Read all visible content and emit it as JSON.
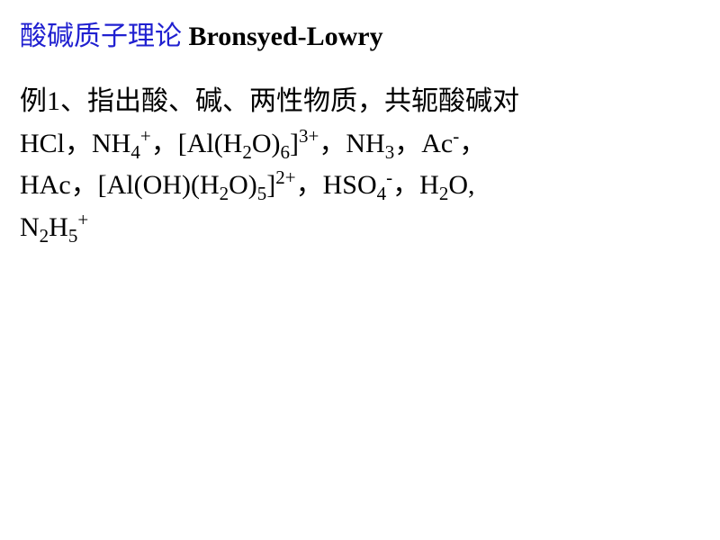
{
  "title": {
    "cn_text": "酸碱质子理论",
    "cn_color": "#2020d0",
    "en_text": "Bronsyed-Lowry",
    "en_color": "#000000",
    "fontsize": 30,
    "gap": "    "
  },
  "body": {
    "fontsize": 30,
    "color": "#000000",
    "line1_prefix": "例1、指出酸、碱、两性物质，共轭酸碱对",
    "items": {
      "HCl": "HCl",
      "NH4p": {
        "base": "NH",
        "sub1": "4",
        "sup1": "+"
      },
      "AlH2O6": {
        "open": "[Al(H",
        "s1": "2",
        "mid1": "O)",
        "s2": "6",
        "close": "]",
        "sup": "3+"
      },
      "NH3": {
        "base": "NH",
        "sub1": "3"
      },
      "Acm": {
        "base": "Ac",
        "sup1": "-"
      },
      "HAc": "HAc",
      "AlOHH2O5": {
        "open": "[Al(OH)(H",
        "s1": "2",
        "mid1": "O)",
        "s2": "5",
        "close": "]",
        "sup": "2+"
      },
      "HSO4m": {
        "base": "HSO",
        "sub1": "4",
        "sup1": "-"
      },
      "H2O": {
        "p1": "H",
        "s1": "2",
        "p2": "O"
      },
      "N2H5p": {
        "p1": "N",
        "s1": "2",
        "p2": "H",
        "s2": "5",
        "sup": "+"
      }
    },
    "sep_cn": "，",
    "sep_en": ", "
  }
}
